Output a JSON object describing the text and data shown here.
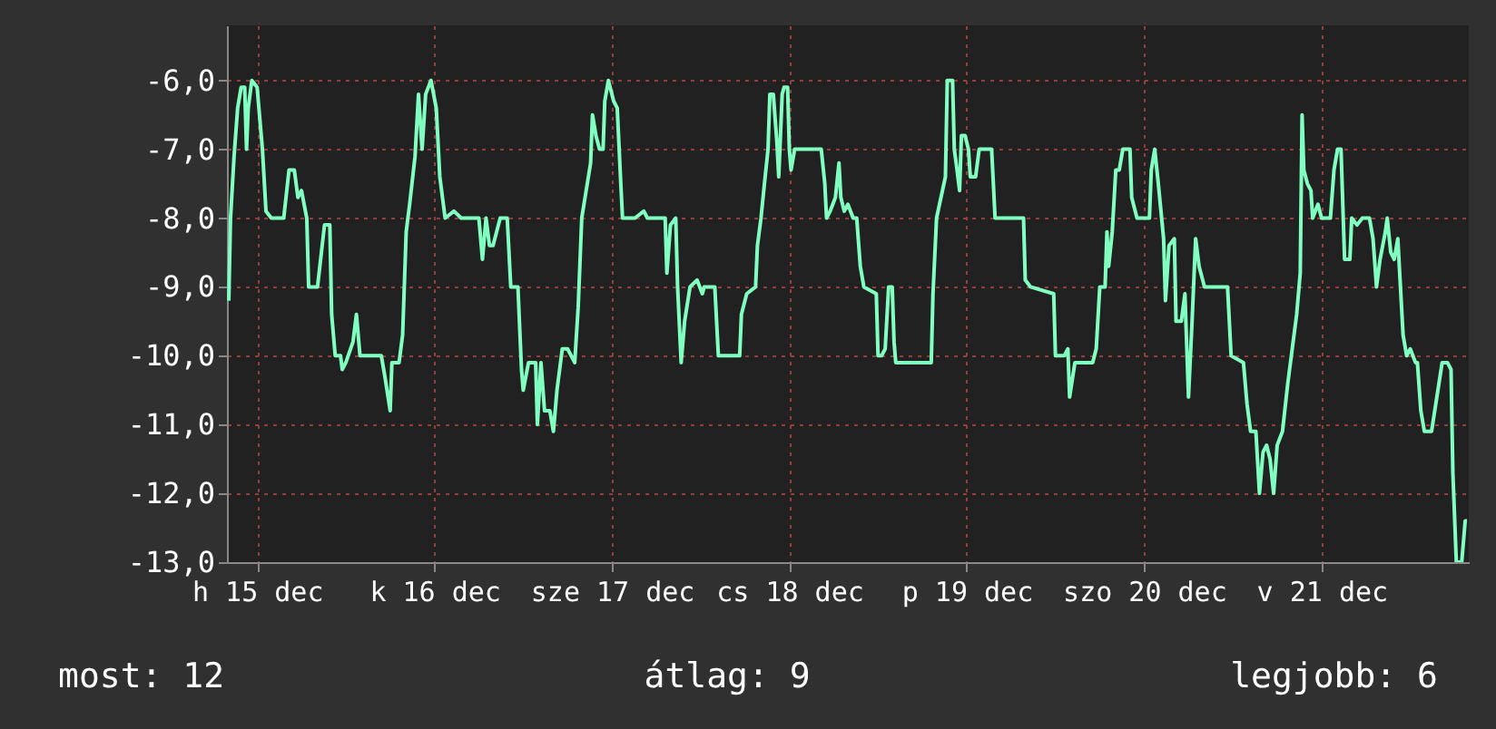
{
  "chart_data": {
    "type": "line",
    "x": [
      "--12-14T20:10",
      "--12-14T20:24",
      "--12-14T20:53",
      "--12-14T21:22",
      "--12-14T21:50",
      "--12-14T22:19",
      "--12-14T22:34",
      "--12-14T22:48",
      "--12-14T23:17",
      "--12-15T00:00",
      "--12-15T00:43",
      "--12-15T01:12",
      "--12-15T01:55",
      "--12-15T03:36",
      "--12-15T04:19",
      "--12-15T05:02",
      "--12-15T05:31",
      "--12-15T06:00",
      "--12-15T06:43",
      "--12-15T06:58",
      "--12-15T08:10",
      "--12-15T09:07",
      "--12-15T09:50",
      "--12-15T10:05",
      "--12-15T10:34",
      "--12-15T11:17",
      "--12-15T11:31",
      "--12-15T12:00",
      "--12-15T12:58",
      "--12-15T13:26",
      "--12-15T13:55",
      "--12-15T16:48",
      "--12-15T17:17",
      "--12-15T18:00",
      "--12-15T18:14",
      "--12-15T19:12",
      "--12-15T19:41",
      "--12-15T20:10",
      "--12-15T20:38",
      "--12-15T21:22",
      "--12-15T21:50",
      "--12-15T22:19",
      "--12-15T22:48",
      "--12-15T23:31",
      "--12-16T00:14",
      "--12-16T00:43",
      "--12-16T01:26",
      "--12-16T02:38",
      "--12-16T03:36",
      "--12-16T06:00",
      "--12-16T06:29",
      "--12-16T06:58",
      "--12-16T07:26",
      "--12-16T07:55",
      "--12-16T08:53",
      "--12-16T09:50",
      "--12-16T10:19",
      "--12-16T11:17",
      "--12-16T11:46",
      "--12-16T12:00",
      "--12-16T12:43",
      "--12-16T13:41",
      "--12-16T13:55",
      "--12-16T14:24",
      "--12-16T14:53",
      "--12-16T15:36",
      "--12-16T16:05",
      "--12-16T16:34",
      "--12-16T17:17",
      "--12-16T18:00",
      "--12-16T18:58",
      "--12-16T19:26",
      "--12-16T19:55",
      "--12-16T21:07",
      "--12-16T21:22",
      "--12-16T21:50",
      "--12-16T22:19",
      "--12-16T22:48",
      "--12-16T23:02",
      "--12-16T23:31",
      "--12-17T00:14",
      "--12-17T00:43",
      "--12-17T01:12",
      "--12-17T01:26",
      "--12-17T03:07",
      "--12-17T04:19",
      "--12-17T04:48",
      "--12-17T07:12",
      "--12-17T07:26",
      "--12-17T07:55",
      "--12-17T08:38",
      "--12-17T08:53",
      "--12-17T09:22",
      "--12-17T09:50",
      "--12-17T10:34",
      "--12-17T11:31",
      "--12-17T12:14",
      "--12-17T12:29",
      "--12-17T13:55",
      "--12-17T14:24",
      "--12-17T17:17",
      "--12-17T17:31",
      "--12-17T18:14",
      "--12-17T19:26",
      "--12-17T19:41",
      "--12-17T20:10",
      "--12-17T20:38",
      "--12-17T21:07",
      "--12-17T21:22",
      "--12-17T21:50",
      "--12-17T22:19",
      "--12-17T22:34",
      "--12-17T23:02",
      "--12-17T23:17",
      "--12-17T23:46",
      "--12-18T00:00",
      "--12-18T00:14",
      "--12-18T00:43",
      "--12-18T04:19",
      "--12-18T04:48",
      "--12-18T05:02",
      "--12-18T05:31",
      "--12-18T06:14",
      "--12-18T06:43",
      "--12-18T06:58",
      "--12-18T07:26",
      "--12-18T07:55",
      "--12-18T08:38",
      "--12-18T09:07",
      "--12-18T09:36",
      "--12-18T10:05",
      "--12-18T11:46",
      "--12-18T12:00",
      "--12-18T12:29",
      "--12-18T12:58",
      "--12-18T13:26",
      "--12-18T13:55",
      "--12-18T14:10",
      "--12-18T14:24",
      "--12-18T19:12",
      "--12-18T19:26",
      "--12-18T19:55",
      "--12-18T21:07",
      "--12-18T21:22",
      "--12-18T22:05",
      "--12-18T22:19",
      "--12-18T22:34",
      "--12-18T23:02",
      "--12-18T23:17",
      "--12-18T23:46",
      "--12-19T00:14",
      "--12-19T00:29",
      "--12-19T01:12",
      "--12-19T01:41",
      "--12-19T03:22",
      "--12-19T03:50",
      "--12-19T07:41",
      "--12-19T07:55",
      "--12-19T08:38",
      "--12-19T11:46",
      "--12-19T12:00",
      "--12-19T13:12",
      "--12-19T13:41",
      "--12-19T13:55",
      "--12-19T14:38",
      "--12-19T17:02",
      "--12-19T17:31",
      "--12-19T18:00",
      "--12-19T18:43",
      "--12-19T18:58",
      "--12-19T19:12",
      "--12-19T19:41",
      "--12-19T20:10",
      "--12-19T20:38",
      "--12-19T21:07",
      "--12-19T22:05",
      "--12-19T22:19",
      "--12-19T23:02",
      "--12-20T00:43",
      "--12-20T00:58",
      "--12-20T01:26",
      "--12-20T01:55",
      "--12-20T02:38",
      "--12-20T02:53",
      "--12-20T03:22",
      "--12-20T04:05",
      "--12-20T04:19",
      "--12-20T05:02",
      "--12-20T05:31",
      "--12-20T06:00",
      "--12-20T06:29",
      "--12-20T06:58",
      "--12-20T07:26",
      "--12-20T08:10",
      "--12-20T08:38",
      "--12-20T11:17",
      "--12-20T11:46",
      "--12-20T13:26",
      "--12-20T13:55",
      "--12-20T14:24",
      "--12-20T15:07",
      "--12-20T15:36",
      "--12-20T16:05",
      "--12-20T16:34",
      "--12-20T17:02",
      "--12-20T17:31",
      "--12-20T18:00",
      "--12-20T18:43",
      "--12-20T19:26",
      "--12-20T19:55",
      "--12-20T20:38",
      "--12-20T21:07",
      "--12-20T21:22",
      "--12-20T21:36",
      "--12-20T22:05",
      "--12-20T22:34",
      "--12-20T22:48",
      "--12-20T23:31",
      "--12-21T00:00",
      "--12-21T01:12",
      "--12-21T01:41",
      "--12-21T02:10",
      "--12-21T02:38",
      "--12-21T03:07",
      "--12-21T03:50",
      "--12-21T04:05",
      "--12-21T04:48",
      "--12-21T05:31",
      "--12-21T06:29",
      "--12-21T06:58",
      "--12-21T07:26",
      "--12-21T07:55",
      "--12-21T08:38",
      "--12-21T08:53",
      "--12-21T09:22",
      "--12-21T09:50",
      "--12-21T10:19",
      "--12-21T11:02",
      "--12-21T11:31",
      "--12-21T12:00",
      "--12-21T12:43",
      "--12-21T12:58",
      "--12-21T13:26",
      "--12-21T13:55",
      "--12-21T14:53",
      "--12-21T15:36",
      "--12-21T16:19",
      "--12-21T17:02",
      "--12-21T17:31",
      "--12-21T17:46",
      "--12-21T18:14",
      "--12-21T18:58",
      "--12-21T19:26",
      "--12-21T19:41"
    ],
    "values": [
      -9.2,
      -8.0,
      -7.1,
      -6.4,
      -6.1,
      -6.1,
      -7.0,
      -6.4,
      -6.0,
      -6.1,
      -7.0,
      -7.9,
      -8.0,
      -8.0,
      -7.3,
      -7.3,
      -7.7,
      -7.6,
      -8.0,
      -9.0,
      -9.0,
      -8.1,
      -8.1,
      -9.4,
      -10.0,
      -10.0,
      -10.2,
      -10.1,
      -9.8,
      -9.4,
      -10.0,
      -10.0,
      -10.3,
      -10.8,
      -10.1,
      -10.1,
      -9.7,
      -8.2,
      -7.8,
      -7.1,
      -6.2,
      -7.0,
      -6.2,
      -6.0,
      -6.4,
      -7.4,
      -8.0,
      -7.9,
      -8.0,
      -8.0,
      -8.6,
      -8.0,
      -8.4,
      -8.4,
      -8.0,
      -8.0,
      -9.0,
      -9.0,
      -10.2,
      -10.5,
      -10.1,
      -10.1,
      -11.0,
      -10.1,
      -10.8,
      -10.8,
      -11.1,
      -10.5,
      -9.9,
      -9.9,
      -10.1,
      -9.3,
      -8.0,
      -7.2,
      -6.5,
      -6.8,
      -7.0,
      -7.0,
      -6.3,
      -6.0,
      -6.3,
      -6.4,
      -7.5,
      -8.0,
      -8.0,
      -7.9,
      -8.0,
      -8.0,
      -8.8,
      -8.1,
      -8.0,
      -9.0,
      -10.1,
      -9.5,
      -9.0,
      -8.9,
      -9.1,
      -9.0,
      -9.0,
      -10.0,
      -10.0,
      -9.4,
      -9.1,
      -9.0,
      -8.4,
      -8.0,
      -7.5,
      -7.0,
      -6.2,
      -6.2,
      -6.9,
      -7.4,
      -6.2,
      -6.1,
      -6.1,
      -7.0,
      -7.3,
      -7.0,
      -7.0,
      -7.5,
      -8.0,
      -7.9,
      -7.7,
      -7.2,
      -7.7,
      -7.9,
      -7.8,
      -8.0,
      -8.0,
      -8.7,
      -9.0,
      -9.1,
      -10.0,
      -10.0,
      -9.9,
      -9.0,
      -9.0,
      -9.8,
      -10.1,
      -10.1,
      -9.1,
      -8.0,
      -7.4,
      -6.0,
      -6.0,
      -7.0,
      -7.2,
      -7.6,
      -6.8,
      -6.8,
      -7.0,
      -7.4,
      -7.4,
      -7.0,
      -7.0,
      -8.0,
      -8.0,
      -8.9,
      -9.0,
      -9.1,
      -10.0,
      -10.0,
      -9.9,
      -10.6,
      -10.1,
      -10.1,
      -9.9,
      -9.0,
      -9.0,
      -8.2,
      -8.7,
      -8.2,
      -7.3,
      -7.3,
      -7.0,
      -7.0,
      -7.7,
      -8.0,
      -8.0,
      -7.3,
      -7.0,
      -7.5,
      -8.3,
      -9.2,
      -8.4,
      -8.3,
      -9.5,
      -9.5,
      -9.1,
      -10.6,
      -9.5,
      -8.3,
      -8.7,
      -9.0,
      -9.0,
      -9.0,
      -10.0,
      -10.1,
      -10.7,
      -11.1,
      -11.1,
      -12.0,
      -11.4,
      -11.3,
      -11.5,
      -12.0,
      -11.3,
      -11.1,
      -10.4,
      -10.0,
      -9.4,
      -8.8,
      -6.5,
      -7.3,
      -7.5,
      -7.6,
      -8.0,
      -7.8,
      -8.0,
      -8.0,
      -7.3,
      -7.0,
      -7.0,
      -8.6,
      -8.6,
      -8.0,
      -8.1,
      -8.0,
      -8.0,
      -8.3,
      -9.0,
      -8.6,
      -8.2,
      -8.0,
      -8.5,
      -8.6,
      -8.3,
      -9.7,
      -10.0,
      -9.9,
      -10.1,
      -10.1,
      -10.8,
      -11.1,
      -11.1,
      -10.6,
      -10.1,
      -10.1,
      -10.2,
      -11.7,
      -13.0,
      -13.0,
      -12.4,
      -12.4
    ],
    "color": "#80ffc0",
    "xlim": [
      "--12-14T19:55",
      "--12-21T19:55"
    ],
    "xticks": [
      {
        "value": "--12-15",
        "label": "h 15 dec"
      },
      {
        "value": "--12-16",
        "label": "k 16 dec"
      },
      {
        "value": "--12-17",
        "label": "sze 17 dec"
      },
      {
        "value": "--12-18",
        "label": "cs 18 dec"
      },
      {
        "value": "--12-19",
        "label": "p 19 dec"
      },
      {
        "value": "--12-20",
        "label": "szo 20 dec"
      },
      {
        "value": "--12-21",
        "label": "v 21 dec"
      }
    ],
    "ylim": [
      -13,
      -5.2
    ],
    "yticks": [
      {
        "value": -13,
        "label": "-13,0"
      },
      {
        "value": -12,
        "label": "-12,0"
      },
      {
        "value": -11,
        "label": "-11,0"
      },
      {
        "value": -10,
        "label": "-10,0"
      },
      {
        "value": -9,
        "label": "-9,0"
      },
      {
        "value": -8,
        "label": "-8,0"
      },
      {
        "value": -7,
        "label": "-7,0"
      },
      {
        "value": -6,
        "label": "-6,0"
      }
    ],
    "grid": true,
    "annotations": [
      "most: 12",
      "átlag: 9",
      "legjobb: 6"
    ]
  }
}
